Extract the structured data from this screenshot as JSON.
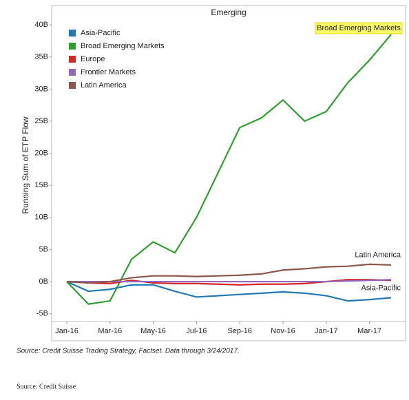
{
  "chart_data": {
    "type": "line",
    "title": "Emerging",
    "y_label": "Running Sum of ETP Flow",
    "categories": [
      "Jan-16",
      null,
      "Mar-16",
      null,
      "May-16",
      null,
      "Jul-16",
      null,
      "Sep-16",
      null,
      "Nov-16",
      null,
      "Jan-17",
      null,
      "Mar-17",
      null
    ],
    "series": [
      {
        "name": "Asia-Pacific",
        "color": "#1f77b4",
        "values": [
          0,
          -1.5,
          -1.2,
          -0.5,
          -0.5,
          -1.5,
          -2.4,
          -2.2,
          -2.0,
          -1.8,
          -1.6,
          -1.8,
          -2.2,
          -3.0,
          -2.8,
          -2.5
        ]
      },
      {
        "name": "Broad Emerging Markets",
        "color": "#2ca02c",
        "values": [
          0,
          -3.5,
          -3,
          3.5,
          6.2,
          4.5,
          10,
          17,
          24,
          25.5,
          28.3,
          25,
          26.5,
          31,
          34.5,
          38.5
        ]
      },
      {
        "name": "Europe",
        "color": "#d62728",
        "values": [
          0,
          -0.2,
          -0.3,
          0.2,
          -0.2,
          -0.3,
          -0.3,
          -0.4,
          -0.5,
          -0.4,
          -0.4,
          -0.3,
          0,
          0.3,
          0.3,
          0.2
        ]
      },
      {
        "name": "Frontier Markets",
        "color": "#9467bd",
        "values": [
          0,
          0,
          0,
          0,
          0,
          0,
          0,
          0,
          0,
          0,
          0,
          0,
          0,
          0.1,
          0.2,
          0.3
        ]
      },
      {
        "name": "Latin America",
        "color": "#8c564b",
        "values": [
          0,
          -0.2,
          0,
          0.6,
          0.9,
          0.9,
          0.8,
          0.9,
          1.0,
          1.2,
          1.8,
          2.0,
          2.3,
          2.4,
          2.7,
          2.6
        ]
      }
    ],
    "ylim": [
      -6,
      42.8
    ],
    "yticks": [
      {
        "value": -5,
        "label": "-5B"
      },
      {
        "value": 0,
        "label": "0B"
      },
      {
        "value": 5,
        "label": "5B"
      },
      {
        "value": 10,
        "label": "10B"
      },
      {
        "value": 15,
        "label": "15B"
      },
      {
        "value": 20,
        "label": "20B"
      },
      {
        "value": 25,
        "label": "25B"
      },
      {
        "value": 30,
        "label": "30B"
      },
      {
        "value": 35,
        "label": "35B"
      },
      {
        "value": 40,
        "label": "40B"
      }
    ],
    "annotations": [
      {
        "text": "Broad Emerging Markets",
        "series": 1
      },
      {
        "text": "Latin America",
        "series": 4
      },
      {
        "text": "Asia-Pacific",
        "series": 0
      }
    ],
    "source_note": "Source: Credit Suisse Trading Strategy, Factset.  Data through 3/24/2017.",
    "footer": "Source: Credit Suisse"
  }
}
